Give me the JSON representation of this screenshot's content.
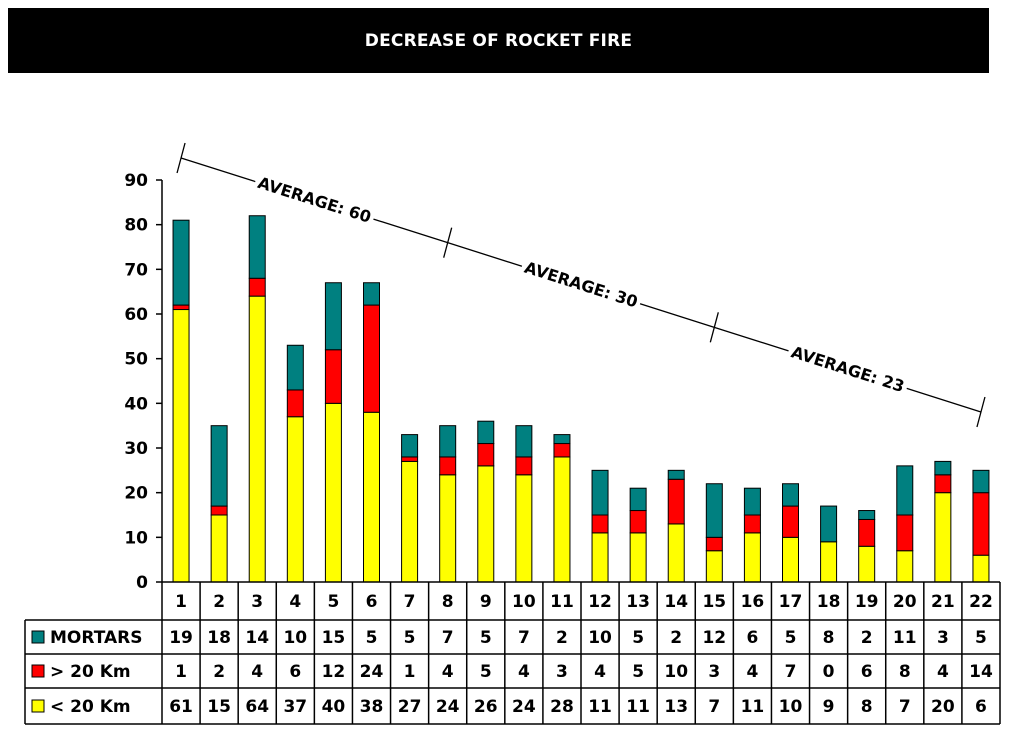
{
  "chart_data": {
    "type": "bar",
    "stacked": true,
    "title": "DECREASE OF ROCKET FIRE",
    "categories": [
      "1",
      "2",
      "3",
      "4",
      "5",
      "6",
      "7",
      "8",
      "9",
      "10",
      "11",
      "12",
      "13",
      "14",
      "15",
      "16",
      "17",
      "18",
      "19",
      "20",
      "21",
      "22"
    ],
    "series": [
      {
        "name": "< 20 Km",
        "color": "#ffff00",
        "values": [
          61,
          15,
          64,
          37,
          40,
          38,
          27,
          24,
          26,
          24,
          28,
          11,
          11,
          13,
          7,
          11,
          10,
          9,
          8,
          7,
          20,
          6
        ]
      },
      {
        "name": "> 20 Km",
        "color": "#ff0000",
        "values": [
          1,
          2,
          4,
          6,
          12,
          24,
          1,
          4,
          5,
          4,
          3,
          4,
          5,
          10,
          3,
          4,
          7,
          0,
          6,
          8,
          4,
          14
        ]
      },
      {
        "name": "MORTARS",
        "color": "#008080",
        "values": [
          19,
          18,
          14,
          10,
          15,
          5,
          5,
          7,
          5,
          7,
          2,
          10,
          5,
          2,
          12,
          6,
          5,
          8,
          2,
          11,
          3,
          5
        ]
      }
    ],
    "table_rows": [
      "MORTARS",
      "> 20 Km",
      "< 20 Km"
    ],
    "yticks": [
      "0",
      "10",
      "20",
      "30",
      "40",
      "50",
      "60",
      "70",
      "80",
      "90"
    ],
    "ylim": [
      0,
      90
    ],
    "grid": false,
    "annotations": [
      {
        "label": "AVERAGE: 60",
        "from": 1,
        "to": 8
      },
      {
        "label": "AVERAGE: 30",
        "from": 8,
        "to": 15
      },
      {
        "label": "AVERAGE: 23",
        "from": 15,
        "to": 22
      }
    ]
  }
}
